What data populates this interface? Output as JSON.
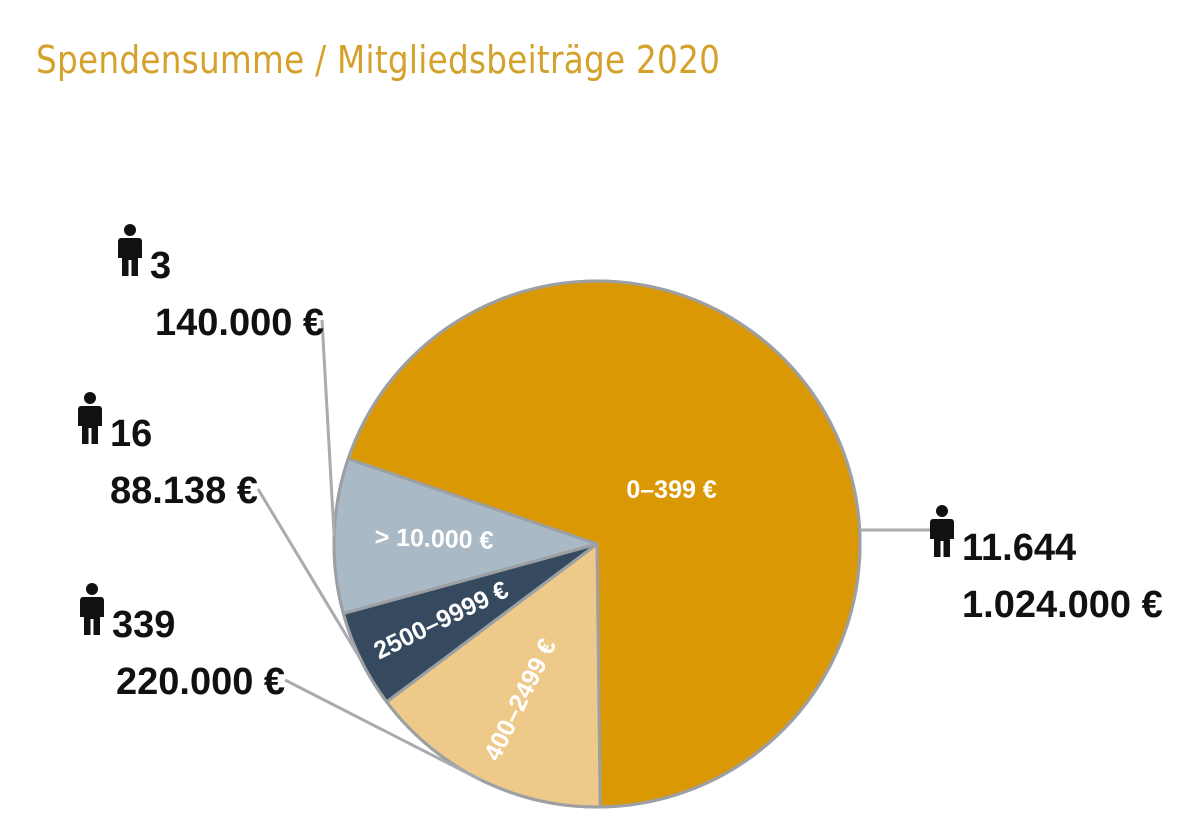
{
  "colors": {
    "title": "#D4A12A",
    "outline": "#9C9FA3",
    "leader": "#A8ABAF",
    "icon": "#111111"
  },
  "chart_data": {
    "type": "pie",
    "title": "Spendensumme / Mitgliedsbeiträge 2020",
    "slices": [
      {
        "category": "0–399 €",
        "value": 1024000,
        "count_label": "11.644",
        "amount_label": "1.024.000 €",
        "color": "#DA9904"
      },
      {
        "category": "400–2499 €",
        "value": 220000,
        "count_label": "339",
        "amount_label": "220.000 €",
        "color": "#EECA8A"
      },
      {
        "category": "2500–9999 €",
        "value": 88138,
        "count_label": "16",
        "amount_label": "88.138 €",
        "color": "#354A5F"
      },
      {
        "category": "> 10.000 €",
        "value": 140000,
        "count_label": "3",
        "amount_label": "140.000 €",
        "color": "#A9B9C6"
      }
    ],
    "icon": "person-icon",
    "legend": "none"
  }
}
